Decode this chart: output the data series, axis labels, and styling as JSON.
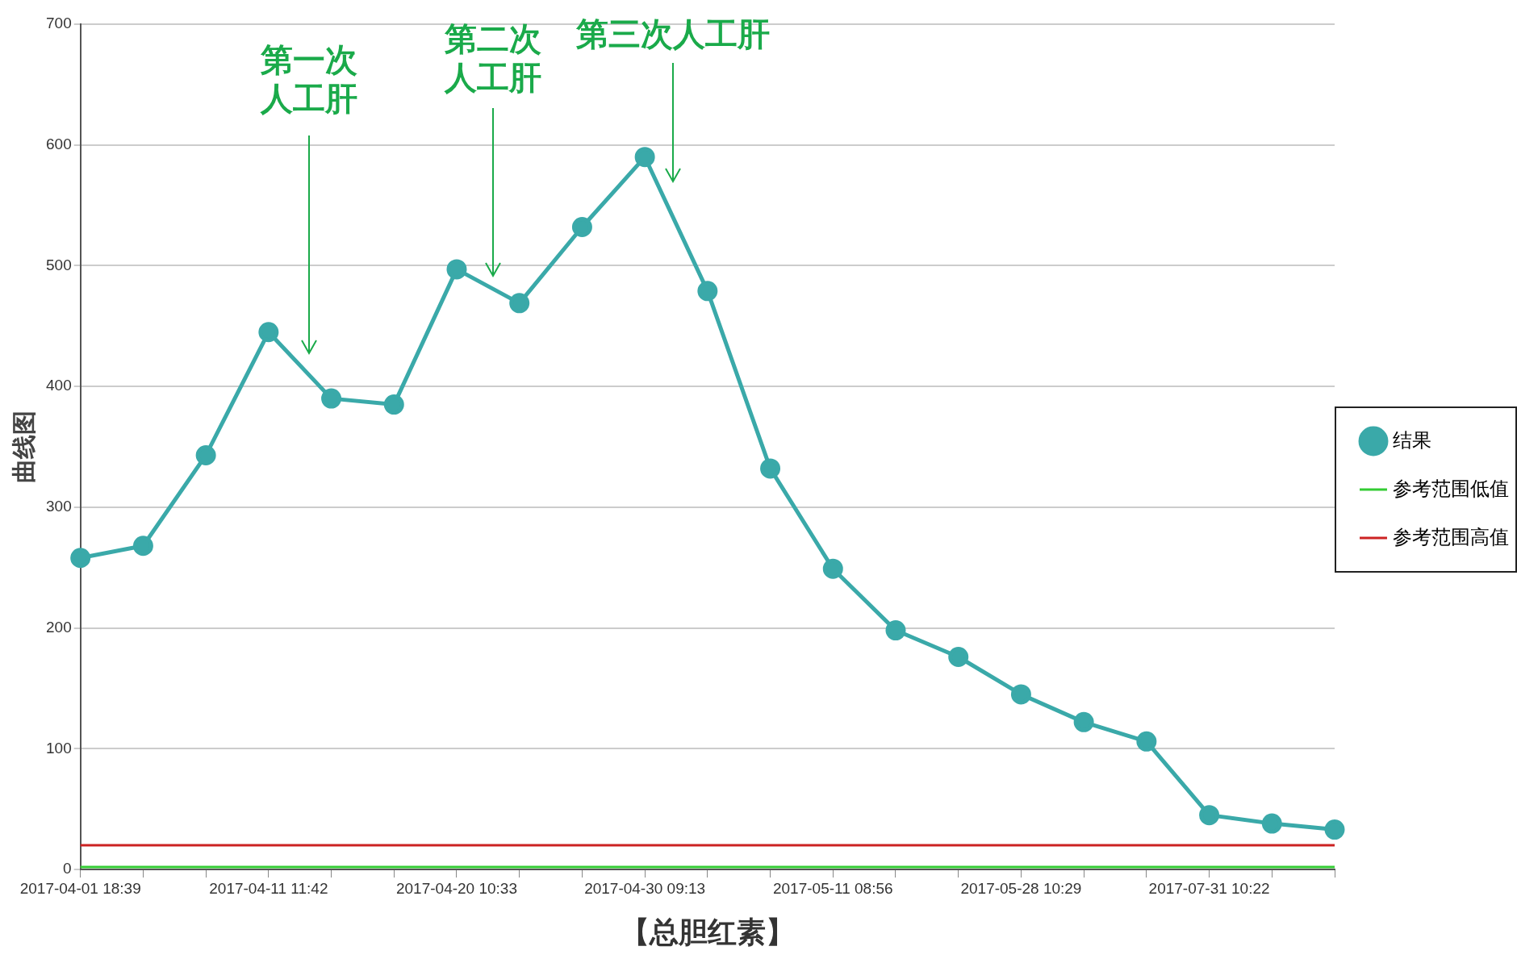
{
  "chart_data": {
    "type": "line",
    "xlabel": "【总胆红素】",
    "ylabel": "曲线图",
    "categories": [
      "2017-04-01 18:39",
      null,
      null,
      "2017-04-11 11:42",
      null,
      null,
      "2017-04-20 10:33",
      null,
      null,
      "2017-04-30 09:13",
      null,
      null,
      "2017-05-11 08:56",
      null,
      null,
      "2017-05-28 10:29",
      null,
      null,
      "2017-07-31 10:22",
      null,
      null
    ],
    "series": [
      {
        "name": "结果",
        "color": "#3aa9a9",
        "marker": "circle",
        "values": [
          258,
          268,
          343,
          445,
          390,
          385,
          497,
          469,
          532,
          590,
          479,
          332,
          249,
          198,
          176,
          145,
          122,
          106,
          45,
          38,
          33
        ]
      },
      {
        "name": "参考范围低值",
        "color": "#33cc33",
        "marker": "none",
        "values": [
          2,
          2,
          2,
          2,
          2,
          2,
          2,
          2,
          2,
          2,
          2,
          2,
          2,
          2,
          2,
          2,
          2,
          2,
          2,
          2,
          2
        ]
      },
      {
        "name": "参考范围高值",
        "color": "#cc2222",
        "marker": "none",
        "values": [
          20,
          20,
          20,
          20,
          20,
          20,
          20,
          20,
          20,
          20,
          20,
          20,
          20,
          20,
          20,
          20,
          20,
          20,
          20,
          20,
          20
        ]
      }
    ],
    "ylim": [
      0,
      700
    ],
    "yticks": [
      0,
      100,
      200,
      300,
      400,
      500,
      600,
      700
    ],
    "grid": "y",
    "legend": "right",
    "annotations": [
      "第一次人工肝",
      "第二次人工肝",
      "第三次人工肝"
    ]
  }
}
